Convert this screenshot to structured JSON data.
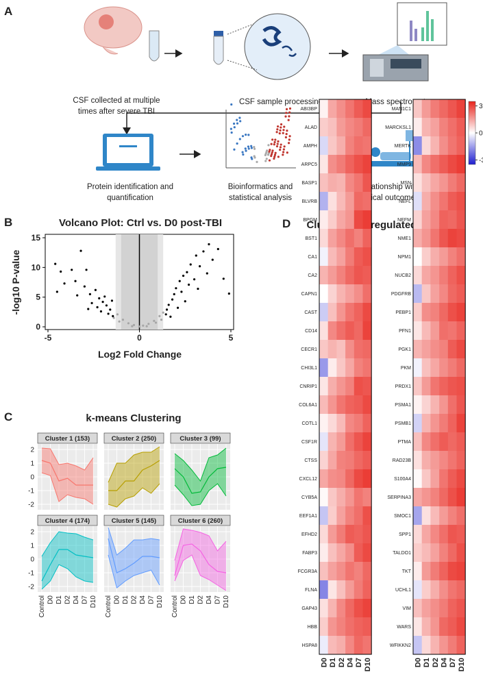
{
  "panel_a": {
    "label": "A",
    "steps": [
      {
        "lines": [
          "CSF collected at multiple",
          "times after severe TBI"
        ]
      },
      {
        "lines": [
          "CSF sample processing"
        ]
      },
      {
        "lines": [
          "Mass spectrometry"
        ]
      },
      {
        "lines": [
          "Protein identification and",
          "quantification"
        ]
      },
      {
        "lines": [
          "Bioinformatics and",
          "statistical analysis"
        ]
      },
      {
        "lines": [
          "Relationship with",
          "clinical outcomes"
        ]
      }
    ]
  },
  "chart_data": [
    {
      "type": "scatter",
      "panel_label": "B",
      "title": "Volcano Plot: Ctrl vs. D0 post-TBI",
      "x_label": "Log2 Fold Change",
      "y_label": "-log10 P-value",
      "xlim": [
        -5,
        5
      ],
      "ylim": [
        0,
        15
      ],
      "xticks": [
        -5,
        0,
        5
      ],
      "yticks": [
        0,
        5,
        10,
        15
      ],
      "threshold_bands": [
        [
          -1.3,
          1.3
        ],
        [
          -1,
          1
        ]
      ],
      "series": [
        {
          "color": "#000000",
          "x": [
            -4.6,
            -4.3,
            -4.5,
            -3.7,
            -4.1,
            -3.5,
            -3.2,
            -2.9,
            -3.0,
            -2.7,
            -2.4,
            -2.2,
            -2.0,
            -1.9,
            -1.8,
            -1.6,
            -1.5,
            -2.3,
            -2.6,
            -1.7,
            -2.1,
            -1.45,
            -3.4,
            -2.8,
            3.8,
            4.3,
            3.5,
            3.1,
            2.8,
            3.3,
            2.6,
            4.0,
            2.4,
            2.2,
            3.7,
            2.0,
            1.9,
            1.8,
            1.6,
            1.5,
            2.3,
            2.7,
            3.0,
            1.45,
            2.1,
            2.5,
            3.2,
            4.6,
            4.9,
            1.7
          ],
          "y": [
            10.6,
            9.3,
            5.9,
            9.6,
            7.3,
            7.7,
            12.8,
            9.6,
            6.8,
            5.5,
            6.2,
            4.8,
            4.2,
            5.1,
            3.6,
            2.9,
            4.4,
            3.3,
            4.0,
            2.2,
            2.6,
            1.8,
            5.3,
            3.0,
            13.9,
            13.1,
            12.7,
            12.0,
            10.5,
            10.2,
            9.2,
            11.3,
            8.6,
            7.7,
            9.0,
            6.5,
            5.5,
            4.6,
            3.7,
            2.9,
            5.9,
            7.1,
            8.0,
            2.1,
            3.2,
            4.3,
            6.4,
            8.1,
            5.6,
            1.7
          ]
        },
        {
          "color": "#a6a6a6",
          "x": [
            -1.2,
            -0.9,
            -0.6,
            -0.3,
            0.0,
            0.2,
            0.5,
            0.8,
            1.1,
            1.3,
            -1.4,
            -1.1,
            0.9,
            1.2,
            -0.4,
            0.4
          ],
          "y": [
            2.1,
            1.2,
            0.6,
            0.3,
            0.05,
            0.2,
            0.5,
            1.0,
            1.8,
            2.4,
            1.5,
            0.9,
            0.7,
            1.2,
            0.1,
            0.1
          ]
        }
      ]
    },
    {
      "type": "line",
      "panel_label": "C",
      "title": "k-means Clustering",
      "categories": [
        "Control",
        "D0",
        "D1",
        "D2",
        "D4",
        "D7",
        "D10"
      ],
      "ylim": [
        -2.4,
        2.4
      ],
      "yticks": [
        -2,
        -1,
        0,
        1,
        2
      ],
      "facets": [
        {
          "title": "Cluster 1 (153)",
          "color": "#f8766d",
          "upper": [
            2.1,
            2.05,
            0.9,
            1.0,
            0.8,
            0.5,
            1.4
          ],
          "values": [
            1.2,
            1.0,
            -0.3,
            -0.1,
            -0.6,
            -0.6,
            -0.6
          ],
          "lower": [
            0.3,
            0.1,
            -1.8,
            -1.3,
            -1.5,
            -1.6,
            -2.0
          ]
        },
        {
          "title": "Cluster 2 (250)",
          "color": "#b79f00",
          "upper": [
            -0.4,
            1.0,
            1.0,
            1.6,
            1.8,
            1.8,
            2.2
          ],
          "values": [
            -1.0,
            -1.0,
            -0.3,
            -0.3,
            0.5,
            0.8,
            1.2
          ],
          "lower": [
            -2.0,
            -2.2,
            -1.6,
            -1.4,
            -0.8,
            -1.2,
            -0.5
          ]
        },
        {
          "title": "Cluster 3 (99)",
          "color": "#00ba38",
          "upper": [
            1.7,
            1.2,
            0.5,
            -0.3,
            1.4,
            1.6,
            2.1
          ],
          "values": [
            0.6,
            0.0,
            -1.2,
            -1.1,
            0.0,
            0.6,
            0.7
          ],
          "lower": [
            -0.6,
            -1.3,
            -2.1,
            -2.0,
            -1.0,
            -0.5,
            -1.4
          ]
        },
        {
          "title": "Cluster 4 (174)",
          "color": "#00bfc4",
          "upper": [
            0.2,
            1.2,
            2.0,
            1.9,
            1.85,
            1.6,
            1.4
          ],
          "values": [
            -1.6,
            -0.4,
            0.7,
            0.7,
            0.3,
            0.2,
            0.1
          ],
          "lower": [
            -2.2,
            -1.6,
            -0.4,
            -0.7,
            -1.3,
            -1.6,
            -1.7
          ]
        },
        {
          "title": "Cluster 5 (145)",
          "color": "#619cff",
          "upper": [
            2.3,
            0.3,
            0.8,
            1.4,
            1.4,
            1.5,
            1.4
          ],
          "values": [
            1.5,
            -1.0,
            -0.7,
            -0.3,
            0.2,
            0.2,
            0.1
          ],
          "lower": [
            0.3,
            -2.1,
            -1.6,
            -1.2,
            -1.0,
            -0.8,
            -1.9
          ]
        },
        {
          "title": "Cluster 6 (260)",
          "color": "#f564e3",
          "upper": [
            -0.1,
            2.2,
            2.1,
            1.95,
            1.7,
            0.6,
            1.3
          ],
          "values": [
            -1.2,
            1.0,
            1.1,
            0.6,
            -0.4,
            -0.9,
            -1.0
          ],
          "lower": [
            -1.6,
            -0.1,
            0.3,
            -1.2,
            -1.5,
            -1.9,
            -2.3
          ]
        }
      ]
    },
    {
      "type": "heatmap",
      "panel_label": "D",
      "title": "Cluster 2: Upregulated Proteins",
      "columns": [
        "D0",
        "D1",
        "D2",
        "D4",
        "D7",
        "D10"
      ],
      "zlim": [
        -3.5,
        3.5
      ],
      "zticks": [
        3,
        0,
        -3
      ],
      "blocks": [
        {
          "rows": [
            "ABI3BP",
            "ALAD",
            "AMPH",
            "ARPC5",
            "BASP1",
            "BLVRB",
            "BPGM",
            "BST1",
            "CA1",
            "CA2",
            "CAPN1",
            "CAST",
            "CD14",
            "CECR1",
            "CHI3L1",
            "CNRIP1",
            "COL6A1",
            "COTL1",
            "CSF1R",
            "CTSS",
            "CXCL12",
            "CYB5A",
            "EEF1A1",
            "EFHD2",
            "FABP3",
            "FCGR3A",
            "FLNA",
            "GAP43",
            "HBB",
            "HSPA8"
          ],
          "values": [
            [
              0.2,
              1.4,
              1.8,
              2.2,
              2.6,
              2.9
            ],
            [
              0.8,
              1.0,
              1.6,
              1.9,
              2.1,
              2.4
            ],
            [
              -0.6,
              0.9,
              1.3,
              2.0,
              2.3,
              2.2
            ],
            [
              0.4,
              1.8,
              2.1,
              2.5,
              2.8,
              3.0
            ],
            [
              1.0,
              1.3,
              1.2,
              1.9,
              2.2,
              2.7
            ],
            [
              -1.2,
              0.5,
              1.1,
              1.6,
              2.4,
              2.3
            ],
            [
              0.3,
              0.8,
              1.4,
              1.7,
              2.9,
              3.1
            ],
            [
              0.6,
              1.5,
              1.9,
              2.3,
              2.0,
              2.5
            ],
            [
              -0.2,
              1.1,
              1.5,
              2.1,
              2.6,
              2.8
            ],
            [
              1.2,
              1.6,
              2.0,
              2.4,
              2.7,
              2.6
            ],
            [
              0.0,
              0.7,
              1.2,
              1.5,
              1.8,
              2.3
            ],
            [
              -0.8,
              1.0,
              1.7,
              2.2,
              2.5,
              2.9
            ],
            [
              0.5,
              1.9,
              2.3,
              2.6,
              2.4,
              3.0
            ],
            [
              0.9,
              1.2,
              1.0,
              1.8,
              2.3,
              2.4
            ],
            [
              -1.6,
              0.3,
              0.9,
              1.4,
              2.0,
              2.2
            ],
            [
              0.4,
              1.3,
              1.7,
              2.0,
              2.8,
              2.7
            ],
            [
              1.1,
              1.7,
              2.2,
              2.5,
              2.6,
              2.9
            ],
            [
              0.2,
              0.6,
              1.1,
              1.9,
              2.1,
              2.5
            ],
            [
              -0.4,
              1.2,
              1.6,
              2.3,
              2.7,
              3.0
            ],
            [
              0.7,
              1.4,
              2.0,
              2.1,
              2.4,
              2.6
            ],
            [
              1.4,
              1.8,
              1.9,
              2.4,
              2.9,
              3.1
            ],
            [
              0.1,
              0.9,
              1.3,
              1.7,
              2.2,
              2.0
            ],
            [
              -0.9,
              0.8,
              1.5,
              2.0,
              2.3,
              2.8
            ],
            [
              0.6,
              1.6,
              2.1,
              2.6,
              2.5,
              2.7
            ],
            [
              0.3,
              1.0,
              1.4,
              1.8,
              2.6,
              2.9
            ],
            [
              1.0,
              1.5,
              1.8,
              2.2,
              2.0,
              2.4
            ],
            [
              -1.9,
              0.4,
              1.0,
              1.6,
              2.1,
              2.5
            ],
            [
              0.5,
              1.2,
              1.9,
              2.4,
              2.8,
              3.0
            ],
            [
              0.8,
              1.7,
              2.0,
              2.3,
              2.5,
              2.6
            ],
            [
              -0.3,
              1.1,
              1.3,
              1.9,
              2.4,
              2.2
            ]
          ]
        },
        {
          "rows": [
            "MAN1C1",
            "MARCKSL1",
            "MERTK",
            "MMP9",
            "MSN",
            "NEFL",
            "NEFM",
            "NME1",
            "NPM1",
            "NUCB2",
            "PDGFRB",
            "PEBP1",
            "PFN1",
            "PGK1",
            "PKM",
            "PRDX1",
            "PSMA1",
            "PSMB1",
            "PTMA",
            "RAD23B",
            "S100A4",
            "SERPINA3",
            "SMOC1",
            "SPP1",
            "TALDO1",
            "TKT",
            "UCHL1",
            "VIM",
            "WARS",
            "WFIKKN2"
          ],
          "values": [
            [
              0.9,
              1.6,
              2.1,
              2.4,
              2.7,
              3.0
            ],
            [
              0.3,
              1.2,
              1.5,
              2.0,
              2.3,
              2.6
            ],
            [
              -1.8,
              0.6,
              1.2,
              1.8,
              2.2,
              2.5
            ],
            [
              1.1,
              1.9,
              2.3,
              2.6,
              2.9,
              3.1
            ],
            [
              0.5,
              1.0,
              1.4,
              1.7,
              2.1,
              2.4
            ],
            [
              -0.5,
              1.3,
              1.8,
              2.2,
              2.6,
              2.8
            ],
            [
              0.7,
              1.5,
              1.9,
              2.5,
              2.4,
              2.7
            ],
            [
              1.3,
              1.7,
              2.2,
              2.7,
              3.0,
              2.9
            ],
            [
              0.0,
              0.8,
              1.3,
              1.6,
              2.0,
              2.3
            ],
            [
              0.6,
              1.4,
              1.7,
              2.1,
              2.5,
              2.8
            ],
            [
              -1.1,
              0.9,
              1.5,
              1.9,
              2.4,
              2.6
            ],
            [
              0.8,
              1.8,
              2.0,
              2.4,
              2.8,
              3.0
            ],
            [
              0.4,
              1.1,
              1.6,
              2.3,
              2.2,
              2.5
            ],
            [
              1.2,
              1.5,
              1.8,
              2.0,
              2.6,
              2.9
            ],
            [
              -0.2,
              1.0,
              1.4,
              1.8,
              2.1,
              2.4
            ],
            [
              0.9,
              1.6,
              2.2,
              2.5,
              2.7,
              2.8
            ],
            [
              0.2,
              0.7,
              1.2,
              1.7,
              2.3,
              2.7
            ],
            [
              -0.7,
              1.2,
              1.7,
              2.1,
              2.5,
              3.0
            ],
            [
              1.0,
              1.9,
              2.3,
              2.6,
              2.4,
              2.6
            ],
            [
              0.5,
              1.3,
              1.6,
              1.9,
              2.2,
              2.5
            ],
            [
              0.1,
              0.9,
              1.5,
              2.2,
              2.6,
              2.9
            ],
            [
              1.4,
              1.7,
              2.0,
              2.4,
              2.8,
              3.1
            ],
            [
              -1.4,
              0.5,
              1.1,
              1.6,
              2.0,
              2.3
            ],
            [
              0.6,
              1.4,
              1.9,
              2.3,
              2.7,
              2.6
            ],
            [
              0.8,
              1.1,
              1.5,
              2.0,
              2.4,
              2.8
            ],
            [
              0.3,
              1.6,
              2.1,
              2.5,
              2.9,
              3.0
            ],
            [
              -0.4,
              0.8,
              1.3,
              1.8,
              2.2,
              2.4
            ],
            [
              1.0,
              1.5,
              1.8,
              2.1,
              2.5,
              2.7
            ],
            [
              0.4,
              1.2,
              1.7,
              2.4,
              2.6,
              2.9
            ],
            [
              -0.9,
              0.6,
              1.2,
              1.7,
              2.1,
              2.5
            ]
          ]
        }
      ]
    }
  ]
}
